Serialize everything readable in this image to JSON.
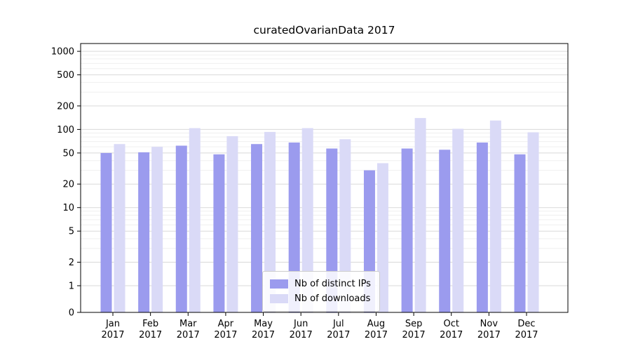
{
  "chart_data": {
    "type": "bar",
    "title": "curatedOvarianData 2017",
    "categories": [
      "Jan 2017",
      "Feb 2017",
      "Mar 2017",
      "Apr 2017",
      "May 2017",
      "Jun 2017",
      "Jul 2017",
      "Aug 2017",
      "Sep 2017",
      "Oct 2017",
      "Nov 2017",
      "Dec 2017"
    ],
    "series": [
      {
        "name": "Nb of distinct IPs",
        "color": "#9b9bee",
        "values": [
          50,
          51,
          62,
          48,
          65,
          68,
          57,
          30,
          57,
          55,
          68,
          48
        ]
      },
      {
        "name": "Nb of downloads",
        "color": "#dadaf7",
        "values": [
          65,
          60,
          104,
          82,
          93,
          104,
          75,
          37,
          140,
          102,
          130,
          92
        ]
      }
    ],
    "yscale": "symlog",
    "y_ticks": [
      0,
      1,
      2,
      5,
      10,
      20,
      50,
      100,
      200,
      500,
      1000
    ],
    "ylim": [
      0,
      1250
    ],
    "grid": true,
    "legend_position": "lower center",
    "colors": {
      "major_grid": "#d9d9d9",
      "minor_grid": "#efefef",
      "axis": "#000000",
      "plot_bg": "#ffffff"
    }
  }
}
